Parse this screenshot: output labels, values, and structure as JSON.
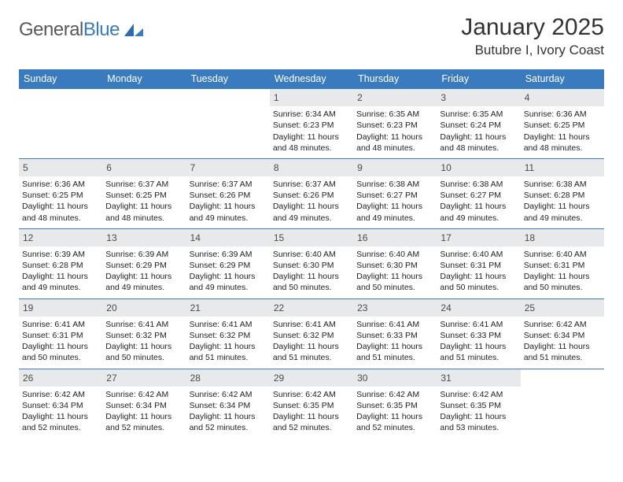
{
  "brand": {
    "part1": "General",
    "part2": "Blue"
  },
  "title": "January 2025",
  "location": "Butubre I, Ivory Coast",
  "colors": {
    "header_bg": "#3a7bbf",
    "header_text": "#ffffff",
    "daynum_bg": "#e8e9ea",
    "daynum_text": "#4a4a4a",
    "week_border": "#3a7bbf",
    "body_text": "#222222"
  },
  "day_headers": [
    "Sunday",
    "Monday",
    "Tuesday",
    "Wednesday",
    "Thursday",
    "Friday",
    "Saturday"
  ],
  "weeks": [
    [
      {
        "empty": true
      },
      {
        "empty": true
      },
      {
        "empty": true
      },
      {
        "day": "1",
        "sunrise": "Sunrise: 6:34 AM",
        "sunset": "Sunset: 6:23 PM",
        "daylight1": "Daylight: 11 hours",
        "daylight2": "and 48 minutes."
      },
      {
        "day": "2",
        "sunrise": "Sunrise: 6:35 AM",
        "sunset": "Sunset: 6:23 PM",
        "daylight1": "Daylight: 11 hours",
        "daylight2": "and 48 minutes."
      },
      {
        "day": "3",
        "sunrise": "Sunrise: 6:35 AM",
        "sunset": "Sunset: 6:24 PM",
        "daylight1": "Daylight: 11 hours",
        "daylight2": "and 48 minutes."
      },
      {
        "day": "4",
        "sunrise": "Sunrise: 6:36 AM",
        "sunset": "Sunset: 6:25 PM",
        "daylight1": "Daylight: 11 hours",
        "daylight2": "and 48 minutes."
      }
    ],
    [
      {
        "day": "5",
        "sunrise": "Sunrise: 6:36 AM",
        "sunset": "Sunset: 6:25 PM",
        "daylight1": "Daylight: 11 hours",
        "daylight2": "and 48 minutes."
      },
      {
        "day": "6",
        "sunrise": "Sunrise: 6:37 AM",
        "sunset": "Sunset: 6:25 PM",
        "daylight1": "Daylight: 11 hours",
        "daylight2": "and 48 minutes."
      },
      {
        "day": "7",
        "sunrise": "Sunrise: 6:37 AM",
        "sunset": "Sunset: 6:26 PM",
        "daylight1": "Daylight: 11 hours",
        "daylight2": "and 49 minutes."
      },
      {
        "day": "8",
        "sunrise": "Sunrise: 6:37 AM",
        "sunset": "Sunset: 6:26 PM",
        "daylight1": "Daylight: 11 hours",
        "daylight2": "and 49 minutes."
      },
      {
        "day": "9",
        "sunrise": "Sunrise: 6:38 AM",
        "sunset": "Sunset: 6:27 PM",
        "daylight1": "Daylight: 11 hours",
        "daylight2": "and 49 minutes."
      },
      {
        "day": "10",
        "sunrise": "Sunrise: 6:38 AM",
        "sunset": "Sunset: 6:27 PM",
        "daylight1": "Daylight: 11 hours",
        "daylight2": "and 49 minutes."
      },
      {
        "day": "11",
        "sunrise": "Sunrise: 6:38 AM",
        "sunset": "Sunset: 6:28 PM",
        "daylight1": "Daylight: 11 hours",
        "daylight2": "and 49 minutes."
      }
    ],
    [
      {
        "day": "12",
        "sunrise": "Sunrise: 6:39 AM",
        "sunset": "Sunset: 6:28 PM",
        "daylight1": "Daylight: 11 hours",
        "daylight2": "and 49 minutes."
      },
      {
        "day": "13",
        "sunrise": "Sunrise: 6:39 AM",
        "sunset": "Sunset: 6:29 PM",
        "daylight1": "Daylight: 11 hours",
        "daylight2": "and 49 minutes."
      },
      {
        "day": "14",
        "sunrise": "Sunrise: 6:39 AM",
        "sunset": "Sunset: 6:29 PM",
        "daylight1": "Daylight: 11 hours",
        "daylight2": "and 49 minutes."
      },
      {
        "day": "15",
        "sunrise": "Sunrise: 6:40 AM",
        "sunset": "Sunset: 6:30 PM",
        "daylight1": "Daylight: 11 hours",
        "daylight2": "and 50 minutes."
      },
      {
        "day": "16",
        "sunrise": "Sunrise: 6:40 AM",
        "sunset": "Sunset: 6:30 PM",
        "daylight1": "Daylight: 11 hours",
        "daylight2": "and 50 minutes."
      },
      {
        "day": "17",
        "sunrise": "Sunrise: 6:40 AM",
        "sunset": "Sunset: 6:31 PM",
        "daylight1": "Daylight: 11 hours",
        "daylight2": "and 50 minutes."
      },
      {
        "day": "18",
        "sunrise": "Sunrise: 6:40 AM",
        "sunset": "Sunset: 6:31 PM",
        "daylight1": "Daylight: 11 hours",
        "daylight2": "and 50 minutes."
      }
    ],
    [
      {
        "day": "19",
        "sunrise": "Sunrise: 6:41 AM",
        "sunset": "Sunset: 6:31 PM",
        "daylight1": "Daylight: 11 hours",
        "daylight2": "and 50 minutes."
      },
      {
        "day": "20",
        "sunrise": "Sunrise: 6:41 AM",
        "sunset": "Sunset: 6:32 PM",
        "daylight1": "Daylight: 11 hours",
        "daylight2": "and 50 minutes."
      },
      {
        "day": "21",
        "sunrise": "Sunrise: 6:41 AM",
        "sunset": "Sunset: 6:32 PM",
        "daylight1": "Daylight: 11 hours",
        "daylight2": "and 51 minutes."
      },
      {
        "day": "22",
        "sunrise": "Sunrise: 6:41 AM",
        "sunset": "Sunset: 6:32 PM",
        "daylight1": "Daylight: 11 hours",
        "daylight2": "and 51 minutes."
      },
      {
        "day": "23",
        "sunrise": "Sunrise: 6:41 AM",
        "sunset": "Sunset: 6:33 PM",
        "daylight1": "Daylight: 11 hours",
        "daylight2": "and 51 minutes."
      },
      {
        "day": "24",
        "sunrise": "Sunrise: 6:41 AM",
        "sunset": "Sunset: 6:33 PM",
        "daylight1": "Daylight: 11 hours",
        "daylight2": "and 51 minutes."
      },
      {
        "day": "25",
        "sunrise": "Sunrise: 6:42 AM",
        "sunset": "Sunset: 6:34 PM",
        "daylight1": "Daylight: 11 hours",
        "daylight2": "and 51 minutes."
      }
    ],
    [
      {
        "day": "26",
        "sunrise": "Sunrise: 6:42 AM",
        "sunset": "Sunset: 6:34 PM",
        "daylight1": "Daylight: 11 hours",
        "daylight2": "and 52 minutes."
      },
      {
        "day": "27",
        "sunrise": "Sunrise: 6:42 AM",
        "sunset": "Sunset: 6:34 PM",
        "daylight1": "Daylight: 11 hours",
        "daylight2": "and 52 minutes."
      },
      {
        "day": "28",
        "sunrise": "Sunrise: 6:42 AM",
        "sunset": "Sunset: 6:34 PM",
        "daylight1": "Daylight: 11 hours",
        "daylight2": "and 52 minutes."
      },
      {
        "day": "29",
        "sunrise": "Sunrise: 6:42 AM",
        "sunset": "Sunset: 6:35 PM",
        "daylight1": "Daylight: 11 hours",
        "daylight2": "and 52 minutes."
      },
      {
        "day": "30",
        "sunrise": "Sunrise: 6:42 AM",
        "sunset": "Sunset: 6:35 PM",
        "daylight1": "Daylight: 11 hours",
        "daylight2": "and 52 minutes."
      },
      {
        "day": "31",
        "sunrise": "Sunrise: 6:42 AM",
        "sunset": "Sunset: 6:35 PM",
        "daylight1": "Daylight: 11 hours",
        "daylight2": "and 53 minutes."
      },
      {
        "empty": true
      }
    ]
  ]
}
